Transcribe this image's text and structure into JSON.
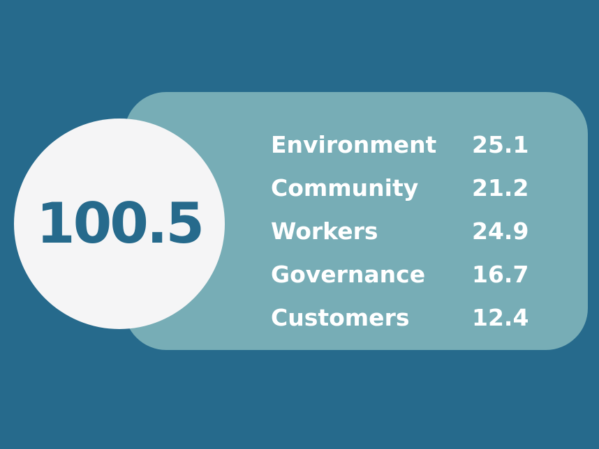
{
  "score": {
    "total": "100.5"
  },
  "categories": [
    {
      "label": "Environment",
      "value": "25.1"
    },
    {
      "label": "Community",
      "value": "21.2"
    },
    {
      "label": "Workers",
      "value": "24.9"
    },
    {
      "label": "Governance",
      "value": "16.7"
    },
    {
      "label": "Customers",
      "value": "12.4"
    }
  ],
  "colors": {
    "background": "#266a8c",
    "panel": "#77adb6",
    "circle": "#f5f5f6",
    "score_text": "#266a8c",
    "row_text": "#ffffff"
  }
}
